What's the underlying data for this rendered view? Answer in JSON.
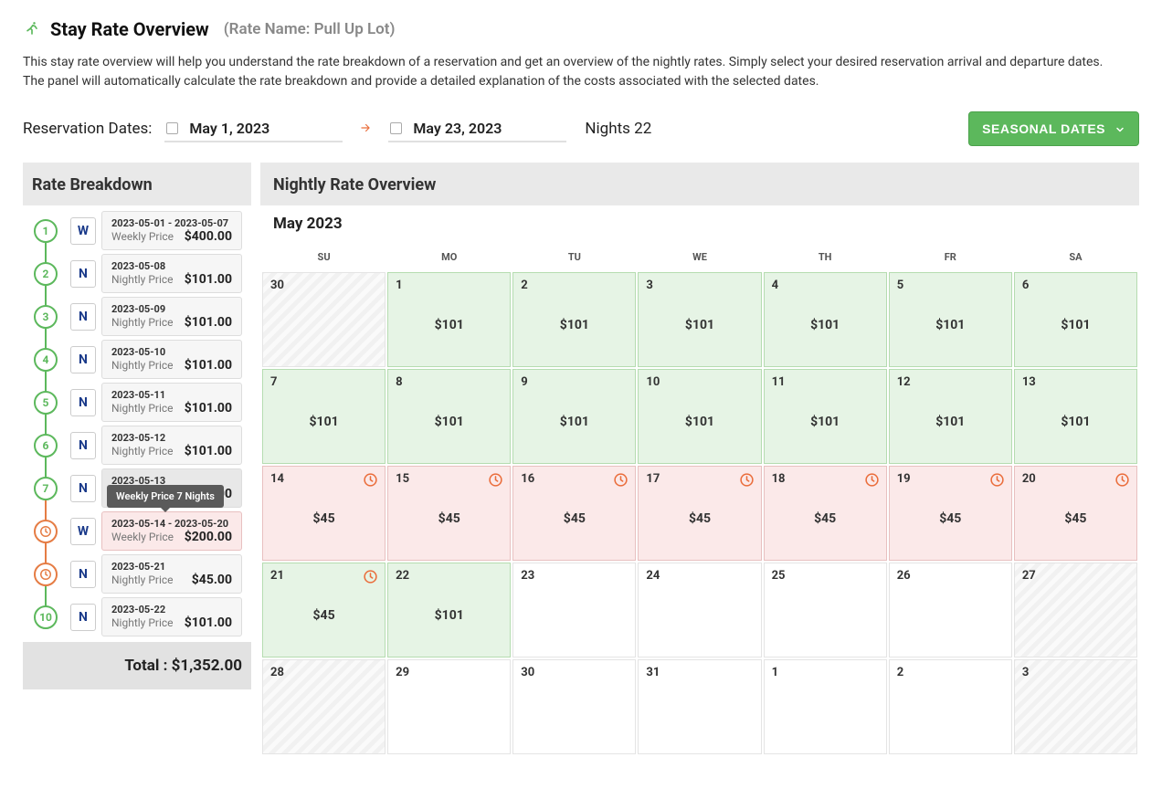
{
  "colors": {
    "accent_green": "#5cb85c",
    "accent_orange": "#e57c44",
    "pink_bg": "#fbe9e9",
    "green_bg": "#e6f4e5",
    "gray_bg": "#e9e9e9"
  },
  "header": {
    "title": "Stay Rate Overview",
    "subtitle": "(Rate Name: Pull Up Lot)"
  },
  "description": "This stay rate overview will help you understand the rate breakdown of a reservation and get an overview of the nightly rates. Simply select your desired reservation arrival and departure dates. The panel will automatically calculate the rate breakdown and provide a detailed explanation of the costs associated with the selected dates.",
  "controls": {
    "label": "Reservation Dates:",
    "arrival": "May 1, 2023",
    "departure": "May 23, 2023",
    "nights_label": "Nights 22",
    "seasonal_button": "SEASONAL DATES"
  },
  "breakdown": {
    "title": "Rate Breakdown",
    "total_label": "Total : $1,352.00",
    "tooltip": "Weekly Price 7 Nights",
    "items": [
      {
        "circle": "1",
        "circle_type": "num",
        "badge": "W",
        "date": "2023-05-01 - 2023-05-07",
        "label": "Weekly Price",
        "amount": "$400.00",
        "card": "plain",
        "line": "green"
      },
      {
        "circle": "2",
        "circle_type": "num",
        "badge": "N",
        "date": "2023-05-08",
        "label": "Nightly Price",
        "amount": "$101.00",
        "card": "plain",
        "line": "green"
      },
      {
        "circle": "3",
        "circle_type": "num",
        "badge": "N",
        "date": "2023-05-09",
        "label": "Nightly Price",
        "amount": "$101.00",
        "card": "plain",
        "line": "green"
      },
      {
        "circle": "4",
        "circle_type": "num",
        "badge": "N",
        "date": "2023-05-10",
        "label": "Nightly Price",
        "amount": "$101.00",
        "card": "plain",
        "line": "green"
      },
      {
        "circle": "5",
        "circle_type": "num",
        "badge": "N",
        "date": "2023-05-11",
        "label": "Nightly Price",
        "amount": "$101.00",
        "card": "plain",
        "line": "green"
      },
      {
        "circle": "6",
        "circle_type": "num",
        "badge": "N",
        "date": "2023-05-12",
        "label": "Nightly Price",
        "amount": "$101.00",
        "card": "plain",
        "line": "green"
      },
      {
        "circle": "7",
        "circle_type": "num",
        "badge": "N",
        "date": "2023-05-13",
        "label": "Nightly Price",
        "amount": "$101.00",
        "card": "hover",
        "line": "green",
        "tooltip": true
      },
      {
        "circle": "clock",
        "circle_type": "clock",
        "badge": "W",
        "date": "2023-05-14 - 2023-05-20",
        "label": "Weekly Price",
        "amount": "$200.00",
        "card": "pink",
        "line": "orange"
      },
      {
        "circle": "clock",
        "circle_type": "clock",
        "badge": "N",
        "date": "2023-05-21",
        "label": "Nightly Price",
        "amount": "$45.00",
        "card": "plain",
        "line": "orange"
      },
      {
        "circle": "10",
        "circle_type": "num",
        "badge": "N",
        "date": "2023-05-22",
        "label": "Nightly Price",
        "amount": "$101.00",
        "card": "plain",
        "line": "green"
      }
    ]
  },
  "overview": {
    "title": "Nightly Rate Overview",
    "month": "May 2023",
    "weekdays": [
      "SU",
      "MO",
      "TU",
      "WE",
      "TH",
      "FR",
      "SA"
    ],
    "weeks": [
      [
        {
          "num": "30",
          "style": "gray"
        },
        {
          "num": "1",
          "style": "green",
          "price": "$101"
        },
        {
          "num": "2",
          "style": "green",
          "price": "$101"
        },
        {
          "num": "3",
          "style": "green",
          "price": "$101"
        },
        {
          "num": "4",
          "style": "green",
          "price": "$101"
        },
        {
          "num": "5",
          "style": "green",
          "price": "$101"
        },
        {
          "num": "6",
          "style": "green",
          "price": "$101"
        }
      ],
      [
        {
          "num": "7",
          "style": "green",
          "price": "$101"
        },
        {
          "num": "8",
          "style": "green",
          "price": "$101"
        },
        {
          "num": "9",
          "style": "green",
          "price": "$101"
        },
        {
          "num": "10",
          "style": "green",
          "price": "$101"
        },
        {
          "num": "11",
          "style": "green",
          "price": "$101"
        },
        {
          "num": "12",
          "style": "green",
          "price": "$101"
        },
        {
          "num": "13",
          "style": "green",
          "price": "$101"
        }
      ],
      [
        {
          "num": "14",
          "style": "pink",
          "price": "$45",
          "clock": true
        },
        {
          "num": "15",
          "style": "pink",
          "price": "$45",
          "clock": true
        },
        {
          "num": "16",
          "style": "pink",
          "price": "$45",
          "clock": true
        },
        {
          "num": "17",
          "style": "pink",
          "price": "$45",
          "clock": true
        },
        {
          "num": "18",
          "style": "pink",
          "price": "$45",
          "clock": true
        },
        {
          "num": "19",
          "style": "pink",
          "price": "$45",
          "clock": true
        },
        {
          "num": "20",
          "style": "pink",
          "price": "$45",
          "clock": true
        }
      ],
      [
        {
          "num": "21",
          "style": "green",
          "price": "$45",
          "clock": true
        },
        {
          "num": "22",
          "style": "green",
          "price": "$101"
        },
        {
          "num": "23",
          "style": "plain"
        },
        {
          "num": "24",
          "style": "plain"
        },
        {
          "num": "25",
          "style": "plain"
        },
        {
          "num": "26",
          "style": "plain"
        },
        {
          "num": "27",
          "style": "gray"
        }
      ],
      [
        {
          "num": "28",
          "style": "gray"
        },
        {
          "num": "29",
          "style": "plain"
        },
        {
          "num": "30",
          "style": "plain"
        },
        {
          "num": "31",
          "style": "plain"
        },
        {
          "num": "1",
          "style": "plain"
        },
        {
          "num": "2",
          "style": "plain"
        },
        {
          "num": "3",
          "style": "gray"
        }
      ]
    ]
  }
}
